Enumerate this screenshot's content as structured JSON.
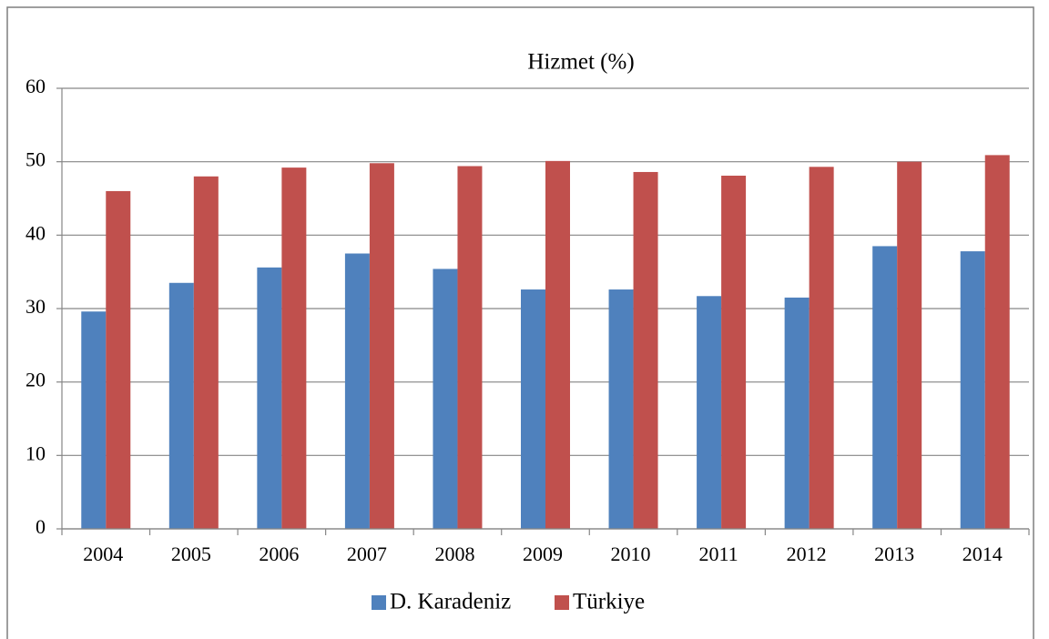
{
  "chart_data": {
    "type": "bar",
    "title": "Hizmet (%)",
    "categories": [
      "2004",
      "2005",
      "2006",
      "2007",
      "2008",
      "2009",
      "2010",
      "2011",
      "2012",
      "2013",
      "2014"
    ],
    "series": [
      {
        "name": "D. Karadeniz",
        "color": "#4f81bd",
        "values": [
          29.6,
          33.5,
          35.6,
          37.5,
          35.4,
          32.6,
          32.6,
          31.7,
          31.5,
          38.5,
          37.8
        ]
      },
      {
        "name": "Türkiye",
        "color": "#c0504d",
        "values": [
          46.0,
          48.0,
          49.2,
          49.8,
          49.4,
          50.1,
          48.6,
          48.1,
          49.3,
          50.0,
          50.9
        ]
      }
    ],
    "ylim": [
      0,
      60
    ],
    "yticks": [
      0,
      10,
      20,
      30,
      40,
      50,
      60
    ],
    "grid": true,
    "legend": "bottom"
  }
}
